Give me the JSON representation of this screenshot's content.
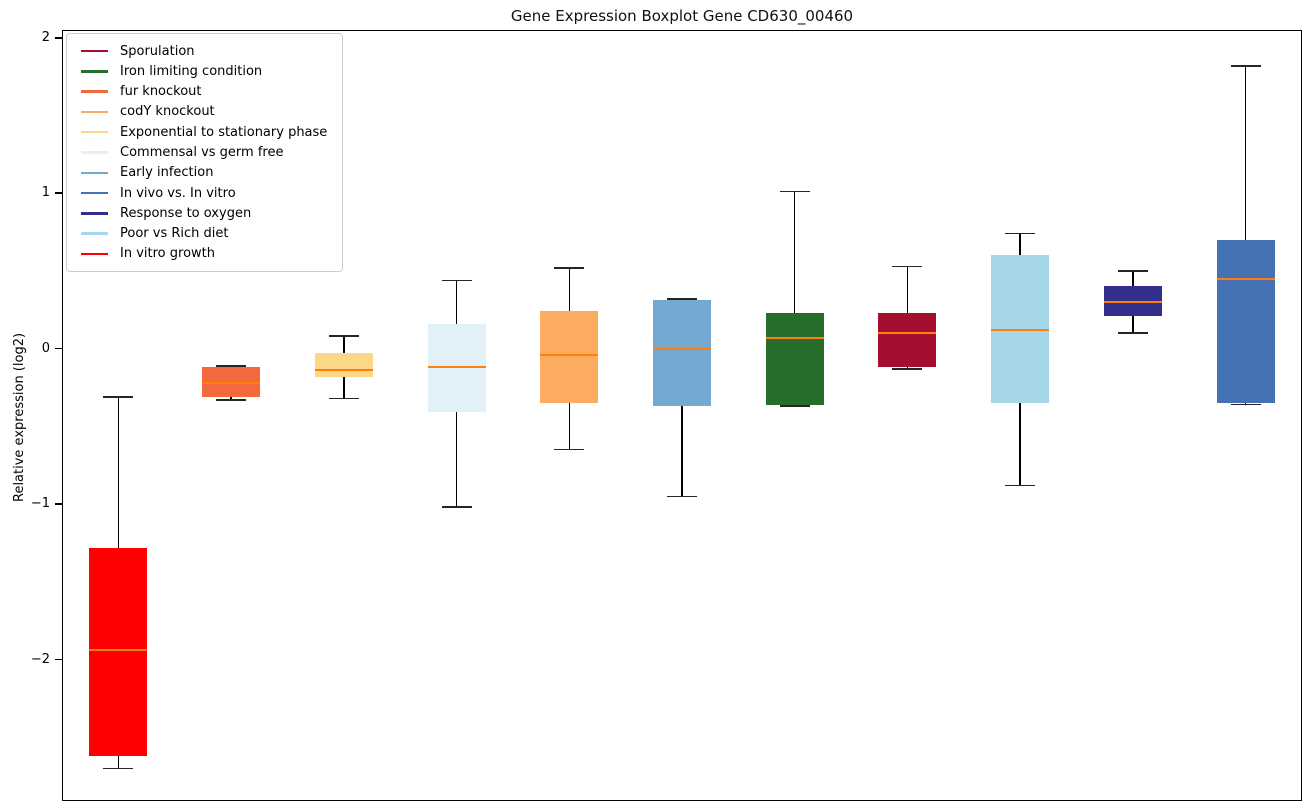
{
  "chart_data": {
    "type": "boxplot",
    "title": "Gene Expression Boxplot Gene CD630_00460",
    "xlabel": "",
    "ylabel": "Relative expression (log2)",
    "ylim": [
      -2.91,
      2.05
    ],
    "grid": false,
    "legend_position": "upper-left",
    "frame_color": "#000000",
    "background_color": "#ffffff",
    "median_color": "#ff7f0e",
    "whisker_color": "#000000",
    "yticks": [
      {
        "value": 2,
        "label": "2"
      },
      {
        "value": 1,
        "label": "1"
      },
      {
        "value": 0,
        "label": "0"
      },
      {
        "value": -1,
        "label": "−1"
      },
      {
        "value": -2,
        "label": "−2"
      }
    ],
    "legend": [
      {
        "label": "Sporulation",
        "color": "#a50f2f"
      },
      {
        "label": "Iron limiting condition",
        "color": "#276e2c"
      },
      {
        "label": "fur knockout",
        "color": "#f4683d"
      },
      {
        "label": "codY knockout",
        "color": "#fbac60"
      },
      {
        "label": "Exponential to stationary phase",
        "color": "#fcd787"
      },
      {
        "label": "Commensal vs germ free",
        "color": "#e2f0f7"
      },
      {
        "label": "Early infection",
        "color": "#74a9d2"
      },
      {
        "label": "In vivo vs. In vitro",
        "color": "#4472b5"
      },
      {
        "label": "Response to oxygen",
        "color": "#322f8c"
      },
      {
        "label": "Poor vs Rich diet",
        "color": "#a6d7e8"
      },
      {
        "label": "In vitro growth",
        "color": "#ff0000"
      }
    ],
    "boxes": [
      {
        "name": "In vitro growth",
        "color": "#ff0000",
        "whislo": -2.7,
        "q1": -2.62,
        "med": -1.94,
        "q3": -1.28,
        "whishi": -0.31
      },
      {
        "name": "fur knockout",
        "color": "#f4683d",
        "whislo": -0.33,
        "q1": -0.31,
        "med": -0.22,
        "q3": -0.12,
        "whishi": -0.11
      },
      {
        "name": "Exponential to stationary phase",
        "color": "#fcd787",
        "whislo": -0.32,
        "q1": -0.18,
        "med": -0.14,
        "q3": -0.03,
        "whishi": 0.08
      },
      {
        "name": "Commensal vs germ free",
        "color": "#e2f0f7",
        "whislo": -1.02,
        "q1": -0.41,
        "med": -0.12,
        "q3": 0.16,
        "whishi": 0.44
      },
      {
        "name": "codY knockout",
        "color": "#fbac60",
        "whislo": -0.65,
        "q1": -0.35,
        "med": -0.04,
        "q3": 0.24,
        "whishi": 0.52
      },
      {
        "name": "Early infection",
        "color": "#74a9d2",
        "whislo": -0.95,
        "q1": -0.37,
        "med": 0.0,
        "q3": 0.31,
        "whishi": 0.32
      },
      {
        "name": "Iron limiting condition",
        "color": "#276e2c",
        "whislo": -0.37,
        "q1": -0.36,
        "med": 0.07,
        "q3": 0.23,
        "whishi": 1.01
      },
      {
        "name": "Sporulation",
        "color": "#a50f2f",
        "whislo": -0.13,
        "q1": -0.12,
        "med": 0.1,
        "q3": 0.23,
        "whishi": 0.53
      },
      {
        "name": "Poor vs Rich diet",
        "color": "#a6d7e8",
        "whislo": -0.88,
        "q1": -0.35,
        "med": 0.12,
        "q3": 0.6,
        "whishi": 0.74
      },
      {
        "name": "Response to oxygen",
        "color": "#322f8c",
        "whislo": 0.1,
        "q1": 0.21,
        "med": 0.3,
        "q3": 0.4,
        "whishi": 0.5
      },
      {
        "name": "In vivo vs. In vitro",
        "color": "#4472b5",
        "whislo": -0.36,
        "q1": -0.35,
        "med": 0.45,
        "q3": 0.7,
        "whishi": 1.82
      }
    ]
  }
}
